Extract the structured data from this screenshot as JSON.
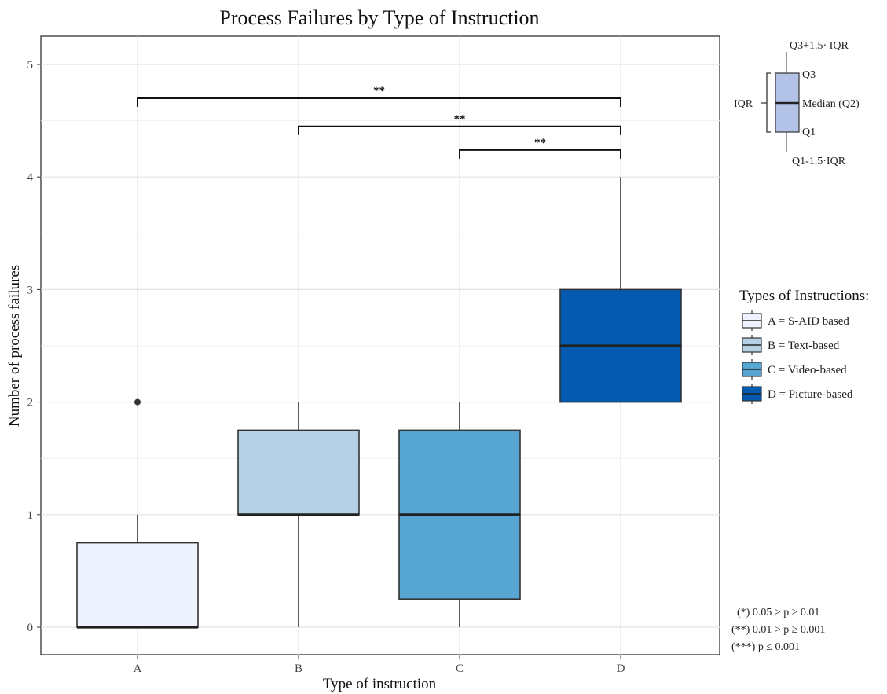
{
  "chart_data": {
    "type": "box",
    "title": "Process Failures by Type of Instruction",
    "xlabel": "Type of instruction",
    "ylabel": "Number of process failures",
    "categories": [
      "A",
      "B",
      "C",
      "D"
    ],
    "ylim": [
      -0.2,
      5.25
    ],
    "yticks": [
      0,
      1,
      2,
      3,
      4,
      5
    ],
    "grid": true,
    "boxes": [
      {
        "category": "A",
        "lower_whisker": 0,
        "q1": 0,
        "median": 0,
        "q3": 0.75,
        "upper_whisker": 1,
        "outliers": [
          2
        ],
        "color": "#eef3ff"
      },
      {
        "category": "B",
        "lower_whisker": 0,
        "q1": 1,
        "median": 1,
        "q3": 1.75,
        "upper_whisker": 2,
        "outliers": [],
        "color": "#b5d1e5"
      },
      {
        "category": "C",
        "lower_whisker": 0,
        "q1": 0.25,
        "median": 1,
        "q3": 1.75,
        "upper_whisker": 2,
        "outliers": [],
        "color": "#56a5d3"
      },
      {
        "category": "D",
        "lower_whisker": 2,
        "q1": 2,
        "median": 2.5,
        "q3": 3,
        "upper_whisker": 4,
        "outliers": [],
        "color": "#045aaf"
      }
    ],
    "significance": [
      {
        "from": "A",
        "to": "D",
        "y": 4.7,
        "label": "**"
      },
      {
        "from": "B",
        "to": "D",
        "y": 4.45,
        "label": "**"
      },
      {
        "from": "C",
        "to": "D",
        "y": 4.24,
        "label": "**"
      }
    ],
    "legend": {
      "title": "Types of Instructions:",
      "position": "right",
      "entries": [
        {
          "label": "A = S-AID based",
          "color": "#eef3ff"
        },
        {
          "label": "B = Text-based",
          "color": "#b5d1e5"
        },
        {
          "label": "C = Video-based",
          "color": "#56a5d3"
        },
        {
          "label": "D = Picture-based",
          "color": "#045aaf"
        }
      ]
    },
    "boxplot_key": {
      "upper": "Q3+1.5· IQR",
      "q3": "Q3",
      "median": "Median (Q2)",
      "q1": "Q1",
      "lower": "Q1-1.5·IQR",
      "iqr": "IQR",
      "color": "#b3c3e8"
    },
    "notes": [
      "(*)  0.05 > p ≥ 0.01",
      "(**) 0.01 > p ≥ 0.001",
      "(***) p ≤ 0.001"
    ]
  }
}
